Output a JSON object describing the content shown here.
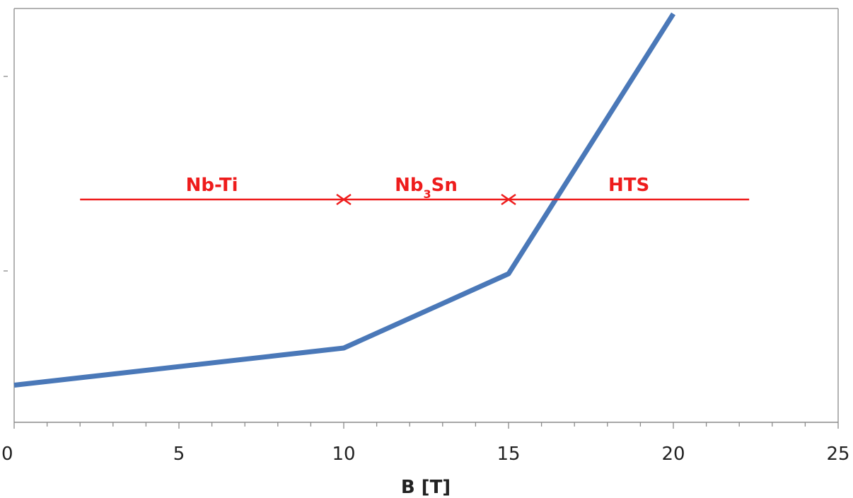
{
  "chart_data": {
    "type": "line",
    "xlabel": "B [T]",
    "ylabel": "",
    "xlim": [
      0,
      25
    ],
    "xticks": [
      "0",
      "5",
      "10",
      "15",
      "20",
      "25"
    ],
    "x_minor_step": 1,
    "ylim": [
      0,
      1
    ],
    "grid": false,
    "series": [
      {
        "color": "#4a78b8",
        "x": [
          0,
          10,
          15,
          20
        ],
        "y": [
          0.1,
          0.2,
          0.4,
          1.1
        ]
      }
    ],
    "annotations": [
      {
        "label_base": "Nb-Ti",
        "label_sub": "",
        "label_rest": "",
        "x_from": 2,
        "x_to": 10,
        "y": 0.6,
        "arrow_start": false,
        "arrow_end": true
      },
      {
        "label_base": "Nb",
        "label_sub": "3",
        "label_rest": "Sn",
        "x_from": 10,
        "x_to": 15,
        "y": 0.6,
        "arrow_start": true,
        "arrow_end": true
      },
      {
        "label_base": "HTS",
        "label_sub": "",
        "label_rest": "",
        "x_from": 15,
        "x_to": 22.3,
        "y": 0.6,
        "arrow_start": true,
        "arrow_end": false
      }
    ],
    "annotation_color": "#ee1c1c"
  }
}
